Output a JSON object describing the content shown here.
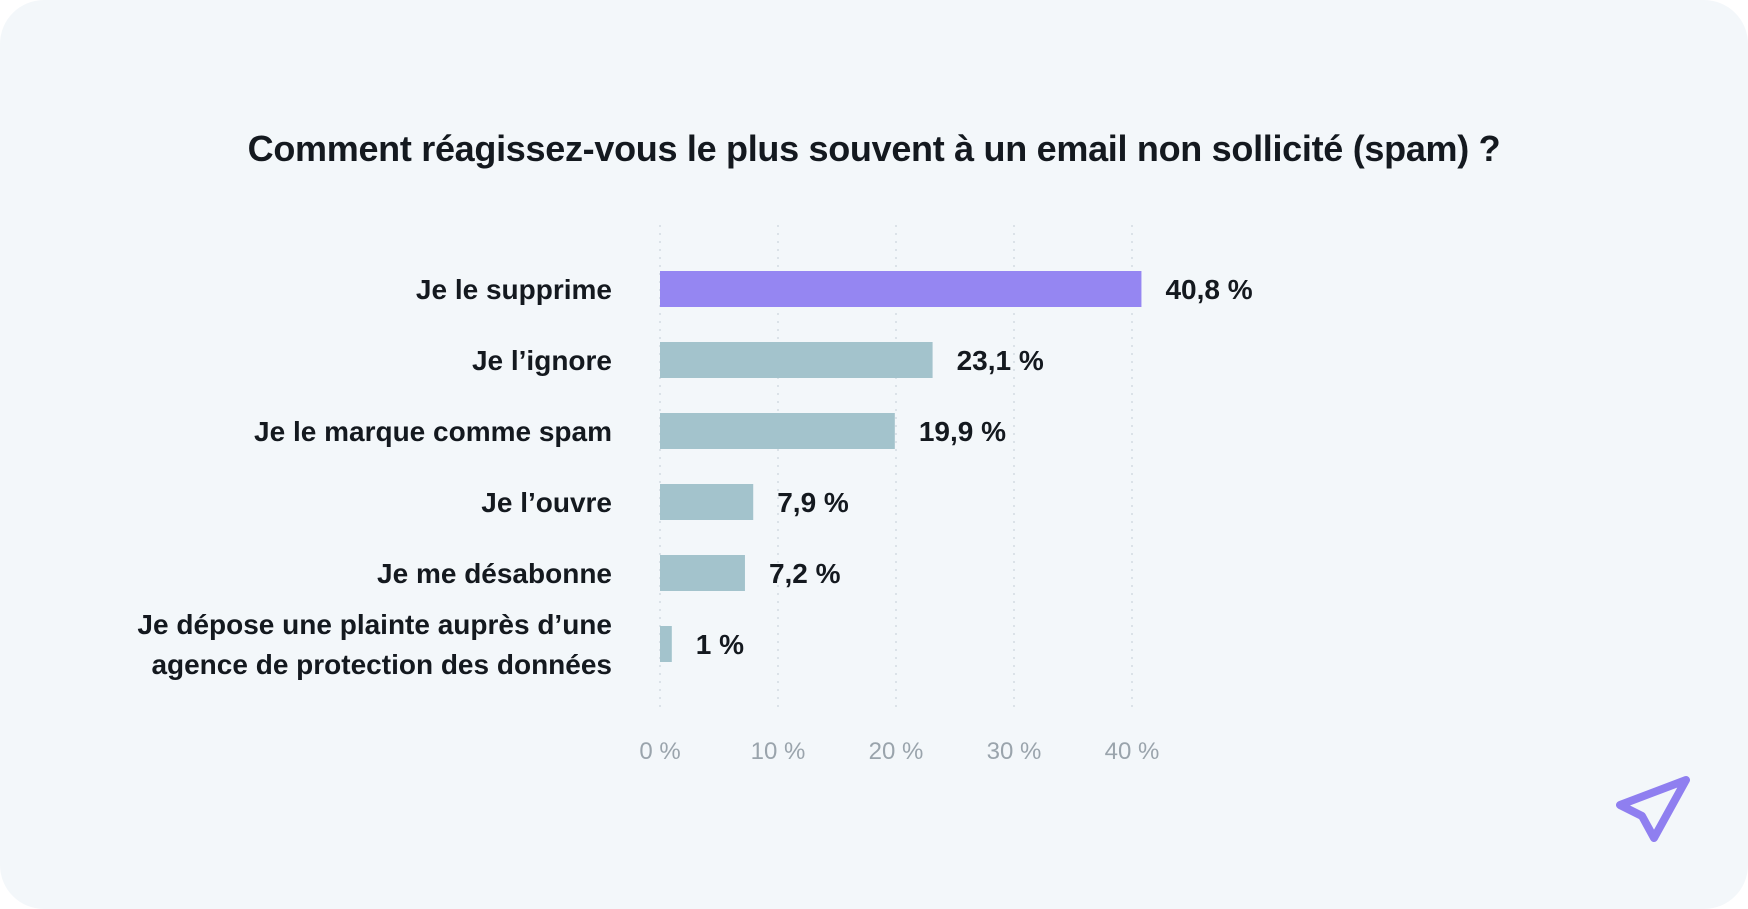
{
  "chart_data": {
    "type": "bar",
    "orientation": "horizontal",
    "title": "Comment réagissez-vous le plus souvent à un email non sollicité (spam) ?",
    "categories": [
      [
        "Je le supprime"
      ],
      [
        "Je l’ignore"
      ],
      [
        "Je le marque comme spam"
      ],
      [
        "Je l’ouvre"
      ],
      [
        "Je me désabonne"
      ],
      [
        "Je dépose une plainte auprès d’une",
        "agence de protection des données"
      ]
    ],
    "values": [
      40.8,
      23.1,
      19.9,
      7.9,
      7.2,
      1
    ],
    "value_labels": [
      "40,8 %",
      "23,1 %",
      "19,9 %",
      "7,9 %",
      "7,2 %",
      "1 %"
    ],
    "xlim": [
      0,
      40
    ],
    "ticks": [
      0,
      10,
      20,
      30,
      40
    ],
    "tick_labels": [
      "0 %",
      "10 %",
      "20 %",
      "30 %",
      "40 %"
    ],
    "xlabel": "",
    "ylabel": "",
    "grid": true,
    "highlight_index": 0,
    "colors": {
      "highlight": "#9586f2",
      "default": "#a3c3cc"
    }
  },
  "logo": {
    "icon": "paper-plane-icon",
    "color": "#8f7ff0"
  }
}
